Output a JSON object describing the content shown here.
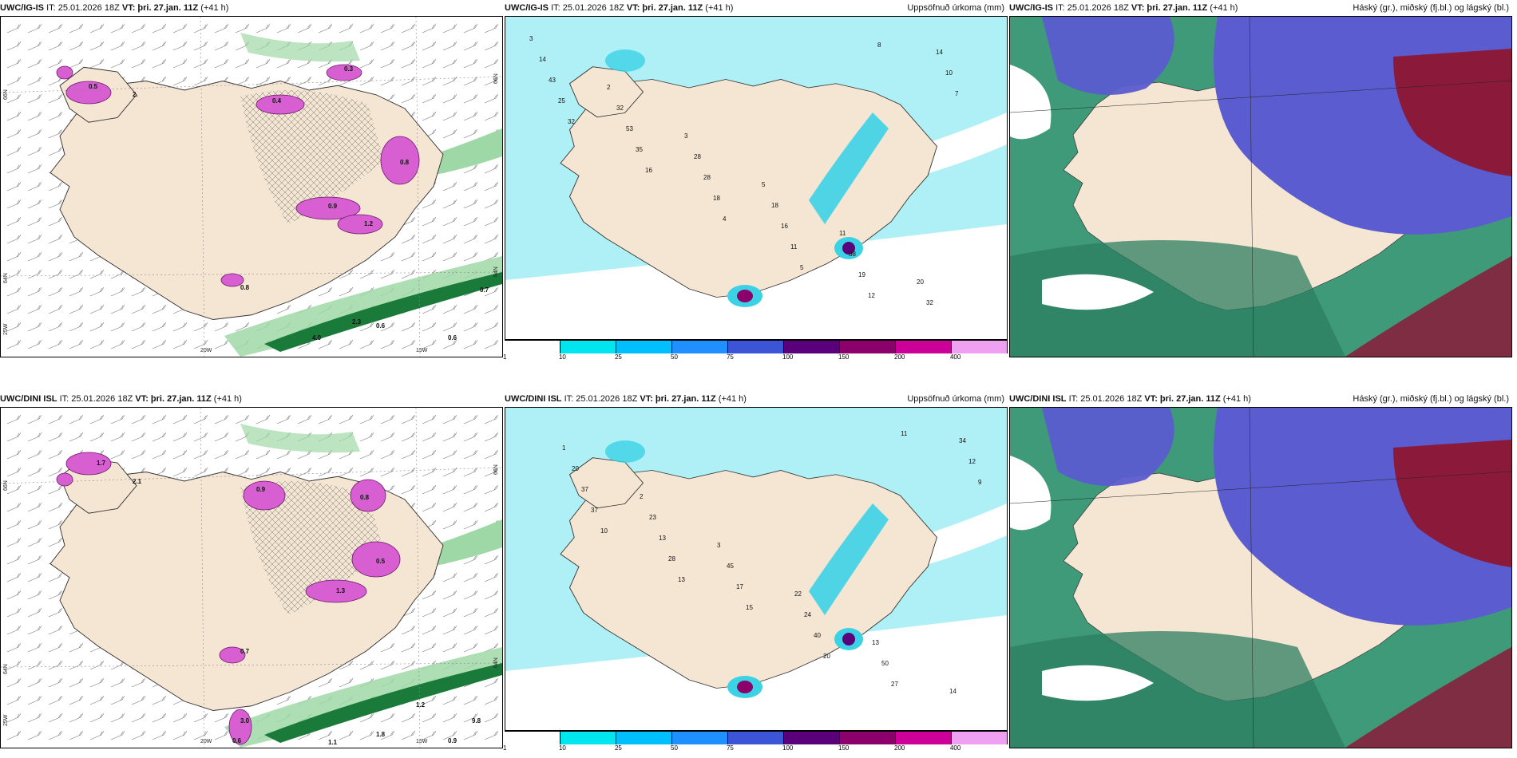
{
  "panels": [
    {
      "id": "igis-precip-type",
      "model": "UWC/IG-IS",
      "it": "IT: 25.01.2026 18Z",
      "vt": "VT: þri. 27.jan. 11Z",
      "lead": "(+41 h)",
      "right_title": "",
      "lon_labels": [
        "20W",
        "15W"
      ],
      "lat_labels": [
        "66N",
        "64N",
        "25W",
        "66N",
        "64N"
      ],
      "values": [
        "0.5",
        "0.4",
        "2.",
        "0.3",
        "0.8",
        "0.9",
        "1.2",
        "2.3",
        "0.7",
        "0.8",
        "4.0",
        "0.6",
        "0.6"
      ]
    },
    {
      "id": "igis-accum",
      "model": "UWC/IG-IS",
      "it": "IT: 25.01.2026 18Z",
      "vt": "VT: þri. 27.jan. 11Z",
      "lead": "(+41 h)",
      "right_title": "Uppsöfnuð úrkoma (mm)",
      "values": [
        "3",
        "2",
        "3",
        "5",
        "11",
        "20",
        "14",
        "32",
        "28",
        "18",
        "38",
        "32",
        "43",
        "53",
        "28",
        "16",
        "19",
        "14",
        "25",
        "35",
        "18",
        "11",
        "12",
        "10",
        "32",
        "16",
        "4",
        "5",
        "8",
        "7"
      ]
    },
    {
      "id": "igis-cloud",
      "model": "UWC/IG-IS",
      "it": "IT: 25.01.2026 18Z",
      "vt": "VT: þri. 27.jan. 11Z",
      "lead": "(+41 h)",
      "right_title": "Háský (gr.), miðský (fj.bl.) og lágský (bl.)"
    },
    {
      "id": "dini-precip-type",
      "model": "UWC/DINI ISL",
      "it": "IT: 25.01.2026 18Z",
      "vt": "VT: þri. 27.jan. 11Z",
      "lead": "(+41 h)",
      "right_title": "",
      "lon_labels": [
        "20W",
        "15W"
      ],
      "lat_labels": [
        "66N",
        "64N",
        "25W",
        "66N",
        "64N"
      ],
      "values": [
        "1.7",
        "0.9",
        "2.1",
        "0.8",
        "0.5",
        "1.3",
        "0.7",
        "1.2",
        "9.8",
        "3.0",
        "0.6",
        "1.8",
        "1.1",
        "0.9"
      ]
    },
    {
      "id": "dini-accum",
      "model": "UWC/DINI ISL",
      "it": "IT: 25.01.2026 18Z",
      "vt": "VT: þri. 27.jan. 11Z",
      "lead": "(+41 h)",
      "right_title": "Uppsöfnuð úrkoma (mm)",
      "values": [
        "1",
        "2",
        "3",
        "22",
        "13",
        "14",
        "20",
        "23",
        "45",
        "24",
        "50",
        "34",
        "37",
        "13",
        "17",
        "40",
        "27",
        "12",
        "37",
        "28",
        "15",
        "20",
        "11",
        "9",
        "10",
        "13"
      ]
    },
    {
      "id": "dini-cloud",
      "model": "UWC/DINI ISL",
      "it": "IT: 25.01.2026 18Z",
      "vt": "VT: þri. 27.jan. 11Z",
      "lead": "(+41 h)",
      "right_title": "Háský (gr.), miðský (fj.bl.) og lágský (bl.)"
    }
  ],
  "colorbar": {
    "labels": [
      "1",
      "10",
      "25",
      "50",
      "75",
      "100",
      "150",
      "200",
      "400"
    ],
    "colors": [
      "#ffffff",
      "#00e5ee",
      "#00bfff",
      "#1e90ff",
      "#3b55d6",
      "#5a007a",
      "#8b006b",
      "#cc0099",
      "#f0a0f0"
    ]
  },
  "colors": {
    "land": "#f5e6d3",
    "sea": "#ffffff",
    "precip_light": "#aef0f5",
    "precip_mid": "#3cd2e6",
    "magenta": "#d85fd2",
    "green": "#1a7a3a",
    "cloud_blue": "#5b5ccf",
    "cloud_green": "#3f9a7a",
    "cloud_red": "#8b1a3a"
  }
}
